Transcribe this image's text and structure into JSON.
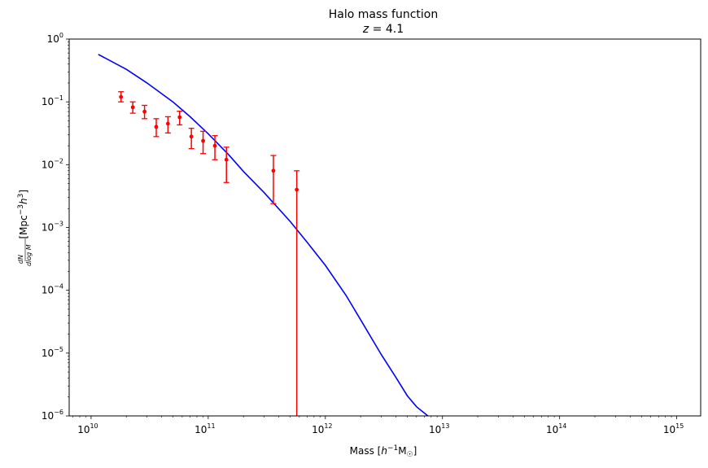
{
  "chart_data": {
    "type": "line",
    "title": "Halo mass function",
    "subtitle": "z = 4.1",
    "xlabel": "Mass [h⁻¹M⊙]",
    "ylabel": "dN/dlogM [Mpc⁻³h³]",
    "xscale": "log",
    "yscale": "log",
    "xlim": [
      6500000000.0,
      1600000000000000.0
    ],
    "ylim": [
      1e-06,
      1
    ],
    "x_ticks": [
      {
        "value": 10000000000.0,
        "label": "10",
        "exp": "10"
      },
      {
        "value": 100000000000.0,
        "label": "10",
        "exp": "11"
      },
      {
        "value": 1000000000000.0,
        "label": "10",
        "exp": "12"
      },
      {
        "value": 10000000000000.0,
        "label": "10",
        "exp": "13"
      },
      {
        "value": 100000000000000.0,
        "label": "10",
        "exp": "14"
      },
      {
        "value": 1000000000000000.0,
        "label": "10",
        "exp": "15"
      }
    ],
    "y_ticks": [
      {
        "value": 1e-06,
        "label": "10",
        "exp": "−6"
      },
      {
        "value": 1e-05,
        "label": "10",
        "exp": "−5"
      },
      {
        "value": 0.0001,
        "label": "10",
        "exp": "−4"
      },
      {
        "value": 0.001,
        "label": "10",
        "exp": "−3"
      },
      {
        "value": 0.01,
        "label": "10",
        "exp": "−2"
      },
      {
        "value": 0.1,
        "label": "10",
        "exp": "−1"
      },
      {
        "value": 1,
        "label": "10",
        "exp": "0"
      }
    ],
    "grid": false,
    "series": [
      {
        "kind": "line",
        "color": "#0000ff",
        "x": [
          11500000000.0,
          20000000000.0,
          30000000000.0,
          50000000000.0,
          70000000000.0,
          100000000000.0,
          150000000000.0,
          200000000000.0,
          300000000000.0,
          500000000000.0,
          700000000000.0,
          1000000000000.0,
          1500000000000.0,
          2000000000000.0,
          3000000000000.0,
          4000000000000.0,
          5000000000000.0,
          6000000000000.0,
          7500000000000.0
        ],
        "y": [
          0.57,
          0.33,
          0.2,
          0.1,
          0.058,
          0.031,
          0.0143,
          0.0078,
          0.0036,
          0.00125,
          0.00058,
          0.00025,
          8.3e-05,
          3.4e-05,
          9.5e-06,
          4.1e-06,
          2.1e-06,
          1.4e-06,
          1e-06
        ]
      },
      {
        "kind": "errorbar",
        "color": "#ff0000",
        "x": [
          18000000000.0,
          22700000000.0,
          28600000000.0,
          36000000000.0,
          45300000000.0,
          57000000000.0,
          71800000000.0,
          90400000000.0,
          114000000000.0,
          143000000000.0,
          360000000000.0,
          570000000000.0
        ],
        "y": [
          0.12,
          0.082,
          0.07,
          0.04,
          0.045,
          0.057,
          0.028,
          0.024,
          0.02,
          0.012,
          0.008,
          0.004
        ],
        "yerr_lower": [
          0.1,
          0.066,
          0.054,
          0.028,
          0.032,
          0.043,
          0.018,
          0.015,
          0.012,
          0.0052,
          0.0024,
          1e-06
        ],
        "yerr_upper": [
          0.145,
          0.1,
          0.088,
          0.054,
          0.058,
          0.071,
          0.038,
          0.034,
          0.029,
          0.019,
          0.014,
          0.008
        ]
      }
    ]
  }
}
